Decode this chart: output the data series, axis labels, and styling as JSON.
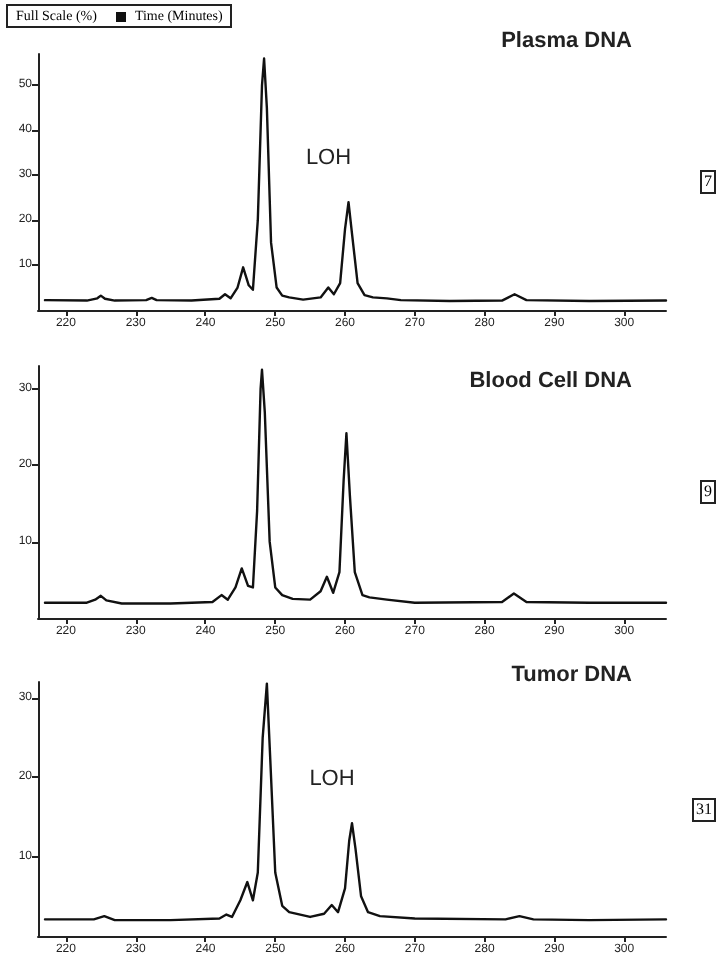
{
  "chart_data": [
    {
      "type": "line",
      "title": "Plasma DNA",
      "xlabel": "Time (Minutes)",
      "ylabel": "Full Scale (%)",
      "xlim": [
        216,
        306
      ],
      "ylim": [
        0,
        57
      ],
      "xticks": [
        220,
        230,
        240,
        250,
        260,
        270,
        280,
        290,
        300
      ],
      "yticks": [
        10,
        20,
        30,
        40,
        50
      ],
      "grid": false,
      "marker": "none",
      "line_style": "solid",
      "series": [
        {
          "color": "#111111",
          "x": [
            217,
            223,
            224.5,
            225,
            225.6,
            227,
            231.5,
            232.3,
            233,
            238,
            242,
            242.8,
            243.6,
            244.6,
            245.4,
            246.2,
            246.8,
            247.5,
            248.1,
            248.4,
            248.8,
            249.4,
            250.2,
            251,
            252,
            254,
            256.5,
            257.6,
            258.4,
            259.3,
            260,
            260.5,
            261,
            261.8,
            262.8,
            264,
            266,
            268,
            275,
            282.5,
            284.3,
            286,
            295,
            306
          ],
          "values": [
            2.2,
            2.1,
            2.6,
            3.2,
            2.5,
            2.1,
            2.2,
            2.7,
            2.2,
            2.1,
            2.5,
            3.5,
            2.6,
            5,
            9.5,
            5.5,
            4.5,
            20,
            50,
            56,
            45,
            15,
            5,
            3.2,
            2.8,
            2.3,
            2.8,
            5,
            3.5,
            6,
            18,
            24,
            17,
            6,
            3.3,
            2.8,
            2.6,
            2.2,
            2,
            2.1,
            3.5,
            2.2,
            2,
            2.1
          ]
        }
      ],
      "annotations": [
        {
          "text": "LOH",
          "x": 260.5,
          "y": 24
        },
        "7"
      ]
    },
    {
      "type": "line",
      "title": "Blood Cell DNA",
      "xlim": [
        216,
        306
      ],
      "ylim": [
        0,
        33
      ],
      "xticks": [
        220,
        230,
        240,
        250,
        260,
        270,
        280,
        290,
        300
      ],
      "yticks": [
        10,
        20,
        30
      ],
      "grid": false,
      "marker": "none",
      "line_style": "solid",
      "series": [
        {
          "color": "#111111",
          "x": [
            217,
            223,
            224.2,
            225,
            225.8,
            228,
            235,
            241,
            242.3,
            243.2,
            244.3,
            245.2,
            246.1,
            246.8,
            247.4,
            247.9,
            248.1,
            248.5,
            249.2,
            250,
            251,
            252.5,
            255,
            256.5,
            257.4,
            258.3,
            259.2,
            259.8,
            260.2,
            260.7,
            261.4,
            262.5,
            263.5,
            266,
            270,
            282.5,
            284.2,
            286,
            295,
            306
          ],
          "values": [
            2,
            2,
            2.4,
            2.9,
            2.3,
            1.9,
            1.9,
            2.1,
            3,
            2.4,
            4,
            6.5,
            4.2,
            4,
            14,
            30,
            32.5,
            27,
            10,
            4,
            3,
            2.5,
            2.4,
            3.5,
            5.4,
            3.3,
            6,
            18,
            24.2,
            16,
            6,
            3,
            2.7,
            2.4,
            2,
            2.1,
            3.2,
            2.1,
            2,
            2
          ]
        }
      ],
      "annotations": [
        "9"
      ]
    },
    {
      "type": "line",
      "title": "Tumor DNA",
      "xlim": [
        216,
        306
      ],
      "ylim": [
        0,
        32
      ],
      "xticks": [
        220,
        230,
        240,
        250,
        260,
        270,
        280,
        290,
        300
      ],
      "yticks": [
        10,
        20,
        30
      ],
      "grid": false,
      "marker": "none",
      "line_style": "solid",
      "series": [
        {
          "color": "#111111",
          "x": [
            217,
            224,
            225.5,
            227,
            235,
            242,
            243,
            243.8,
            245,
            246,
            246.8,
            247.5,
            248.2,
            248.8,
            249.3,
            250,
            251,
            252,
            255,
            257,
            258.1,
            259,
            260,
            260.6,
            261,
            261.5,
            262.3,
            263.3,
            265,
            270,
            283,
            285,
            287,
            295,
            306
          ],
          "values": [
            2.1,
            2.1,
            2.5,
            2,
            2,
            2.2,
            2.7,
            2.4,
            4.5,
            6.8,
            4.5,
            8,
            25,
            31.8,
            22,
            8,
            3.8,
            3,
            2.4,
            2.8,
            3.9,
            3,
            6,
            12,
            14.2,
            11,
            5,
            3,
            2.5,
            2.2,
            2.1,
            2.5,
            2.1,
            2,
            2.1
          ]
        }
      ],
      "annotations": [
        {
          "text": "LOH",
          "x": 261,
          "y": 14.2
        },
        "31"
      ]
    }
  ]
}
